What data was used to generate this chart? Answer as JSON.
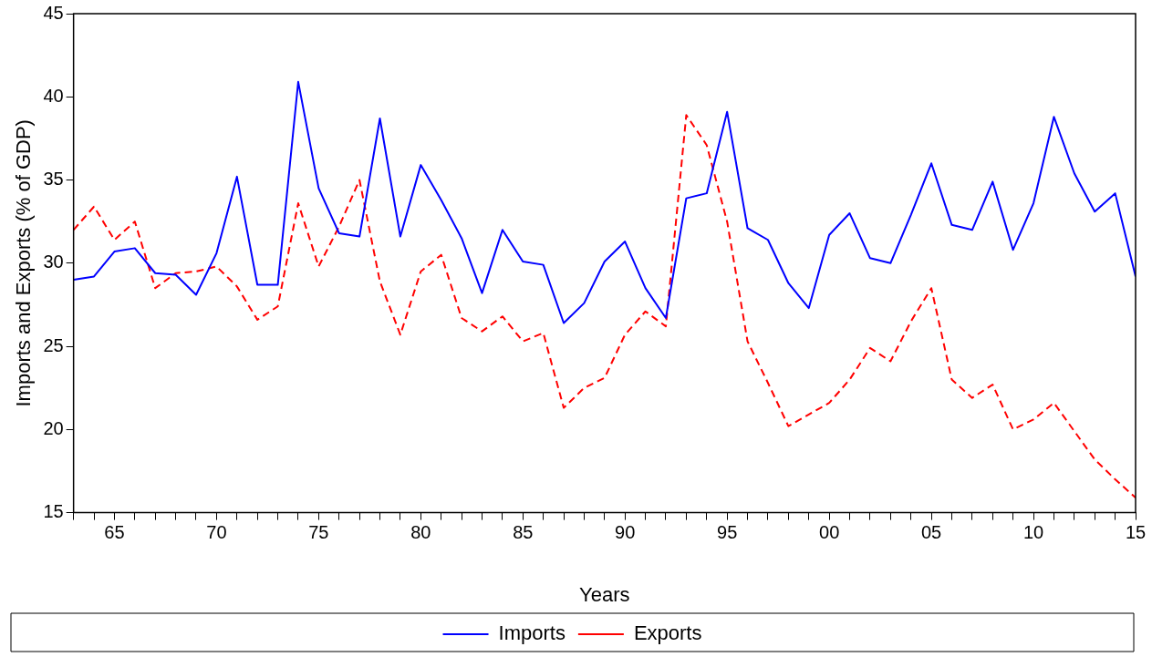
{
  "chart_data": {
    "type": "line",
    "xlabel": "Years",
    "ylabel": "Imports and Exports (% of GDP)",
    "x": [
      1963,
      1964,
      1965,
      1966,
      1967,
      1968,
      1969,
      1970,
      1971,
      1972,
      1973,
      1974,
      1975,
      1976,
      1977,
      1978,
      1979,
      1980,
      1981,
      1982,
      1983,
      1984,
      1985,
      1986,
      1987,
      1988,
      1989,
      1990,
      1991,
      1992,
      1993,
      1994,
      1995,
      1996,
      1997,
      1998,
      1999,
      2000,
      2001,
      2002,
      2003,
      2004,
      2005,
      2006,
      2007,
      2008,
      2009,
      2010,
      2011,
      2012,
      2013,
      2014,
      2015
    ],
    "series": [
      {
        "name": "Imports",
        "color": "#0000ff",
        "line_style": "solid",
        "values": [
          29.0,
          29.2,
          30.7,
          30.9,
          29.4,
          29.3,
          28.1,
          30.6,
          35.2,
          28.7,
          28.7,
          40.9,
          34.5,
          31.8,
          31.6,
          38.7,
          31.6,
          35.9,
          33.8,
          31.5,
          28.2,
          32.0,
          30.1,
          29.9,
          26.4,
          27.6,
          30.1,
          31.3,
          28.5,
          26.7,
          33.9,
          34.2,
          39.1,
          32.1,
          31.4,
          28.8,
          27.3,
          31.7,
          33.0,
          30.3,
          30.0,
          32.9,
          36.0,
          32.3,
          32.0,
          34.9,
          30.8,
          33.6,
          38.8,
          35.4,
          33.1,
          34.2,
          29.2
        ]
      },
      {
        "name": "Exports",
        "color": "#ff0000",
        "line_style": "dashed",
        "values": [
          32.0,
          33.4,
          31.4,
          32.5,
          28.5,
          29.4,
          29.5,
          29.8,
          28.6,
          26.6,
          27.4,
          33.6,
          29.8,
          32.2,
          35.0,
          28.9,
          25.7,
          29.5,
          30.5,
          26.7,
          25.9,
          26.8,
          25.3,
          25.8,
          21.3,
          22.5,
          23.1,
          25.7,
          27.1,
          26.2,
          38.9,
          37.1,
          32.5,
          25.3,
          22.8,
          20.2,
          20.9,
          21.6,
          23.0,
          24.9,
          24.1,
          26.5,
          28.5,
          23.0,
          21.9,
          22.7,
          20.0,
          20.6,
          21.6,
          19.9,
          18.2,
          17.0,
          15.9
        ]
      }
    ],
    "xlim": [
      1963,
      2015
    ],
    "xticks": [
      {
        "value": 1963,
        "label": null
      },
      {
        "value": 1964,
        "label": null
      },
      {
        "value": 1965,
        "label": "65"
      },
      {
        "value": 1966,
        "label": null
      },
      {
        "value": 1967,
        "label": null
      },
      {
        "value": 1968,
        "label": null
      },
      {
        "value": 1969,
        "label": null
      },
      {
        "value": 1970,
        "label": "70"
      },
      {
        "value": 1971,
        "label": null
      },
      {
        "value": 1972,
        "label": null
      },
      {
        "value": 1973,
        "label": null
      },
      {
        "value": 1974,
        "label": null
      },
      {
        "value": 1975,
        "label": "75"
      },
      {
        "value": 1976,
        "label": null
      },
      {
        "value": 1977,
        "label": null
      },
      {
        "value": 1978,
        "label": null
      },
      {
        "value": 1979,
        "label": null
      },
      {
        "value": 1980,
        "label": "80"
      },
      {
        "value": 1981,
        "label": null
      },
      {
        "value": 1982,
        "label": null
      },
      {
        "value": 1983,
        "label": null
      },
      {
        "value": 1984,
        "label": null
      },
      {
        "value": 1985,
        "label": "85"
      },
      {
        "value": 1986,
        "label": null
      },
      {
        "value": 1987,
        "label": null
      },
      {
        "value": 1988,
        "label": null
      },
      {
        "value": 1989,
        "label": null
      },
      {
        "value": 1990,
        "label": "90"
      },
      {
        "value": 1991,
        "label": null
      },
      {
        "value": 1992,
        "label": null
      },
      {
        "value": 1993,
        "label": null
      },
      {
        "value": 1994,
        "label": null
      },
      {
        "value": 1995,
        "label": "95"
      },
      {
        "value": 1996,
        "label": null
      },
      {
        "value": 1997,
        "label": null
      },
      {
        "value": 1998,
        "label": null
      },
      {
        "value": 1999,
        "label": null
      },
      {
        "value": 2000,
        "label": "00"
      },
      {
        "value": 2001,
        "label": null
      },
      {
        "value": 2002,
        "label": null
      },
      {
        "value": 2003,
        "label": null
      },
      {
        "value": 2004,
        "label": null
      },
      {
        "value": 2005,
        "label": "05"
      },
      {
        "value": 2006,
        "label": null
      },
      {
        "value": 2007,
        "label": null
      },
      {
        "value": 2008,
        "label": null
      },
      {
        "value": 2009,
        "label": null
      },
      {
        "value": 2010,
        "label": "10"
      },
      {
        "value": 2011,
        "label": null
      },
      {
        "value": 2012,
        "label": null
      },
      {
        "value": 2013,
        "label": null
      },
      {
        "value": 2014,
        "label": null
      },
      {
        "value": 2015,
        "label": "15"
      }
    ],
    "ylim": [
      15,
      45
    ],
    "yticks": [
      15,
      20,
      25,
      30,
      35,
      40,
      45
    ],
    "grid": false,
    "legend": "bottom",
    "marker": "none"
  }
}
